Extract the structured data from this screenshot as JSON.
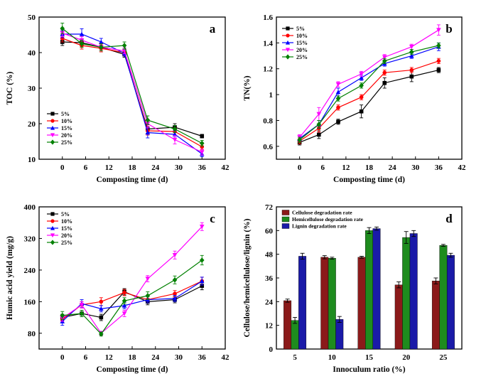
{
  "chart_data": [
    {
      "type": "line",
      "panel_label": "a",
      "xlabel": "Composting time (d)",
      "ylabel": "TOC (%)",
      "xlim": [
        -6,
        42
      ],
      "ylim": [
        10,
        50
      ],
      "xticks": [
        0,
        6,
        12,
        18,
        24,
        30,
        36,
        42
      ],
      "yticks": [
        10,
        20,
        30,
        40,
        50
      ],
      "legend_position": "lower-left",
      "x": [
        0,
        5,
        10,
        16,
        22,
        29,
        36
      ],
      "series": [
        {
          "name": "5%",
          "color": "#000000",
          "marker": "square",
          "values": [
            43.0,
            42.8,
            41.5,
            39.5,
            18.5,
            19.0,
            16.5
          ],
          "errors": [
            1.0,
            1.0,
            1.0,
            0.8,
            1.2,
            1.0,
            0.5
          ]
        },
        {
          "name": "10%",
          "color": "#ff0000",
          "marker": "circle",
          "values": [
            44.0,
            42.0,
            41.2,
            40.0,
            18.0,
            17.8,
            13.5
          ],
          "errors": [
            1.0,
            1.0,
            1.0,
            0.8,
            1.2,
            1.0,
            0.8
          ]
        },
        {
          "name": "15%",
          "color": "#0000ff",
          "marker": "triangle-up",
          "values": [
            45.2,
            45.2,
            43.0,
            39.8,
            17.5,
            17.0,
            11.5
          ],
          "errors": [
            1.0,
            1.5,
            1.0,
            0.8,
            1.5,
            1.0,
            0.8
          ]
        },
        {
          "name": "20%",
          "color": "#ff00ff",
          "marker": "triangle-down",
          "values": [
            45.5,
            43.5,
            41.5,
            40.5,
            20.0,
            15.5,
            12.0
          ],
          "errors": [
            1.0,
            1.0,
            1.0,
            0.8,
            1.2,
            1.2,
            0.8
          ]
        },
        {
          "name": "25%",
          "color": "#008000",
          "marker": "diamond",
          "values": [
            46.8,
            42.5,
            41.5,
            42.0,
            21.0,
            18.5,
            14.5
          ],
          "errors": [
            1.5,
            1.0,
            1.0,
            1.0,
            1.2,
            1.0,
            0.8
          ]
        }
      ]
    },
    {
      "type": "line",
      "panel_label": "b",
      "xlabel": "Composting time (d)",
      "ylabel": "TN(%)",
      "xlim": [
        -6,
        42
      ],
      "ylim": [
        0.5,
        1.6
      ],
      "xticks": [
        0,
        6,
        12,
        18,
        24,
        30,
        36,
        42
      ],
      "yticks": [
        0.6,
        0.8,
        1.0,
        1.2,
        1.4,
        1.6
      ],
      "legend_position": "top-left",
      "x": [
        0,
        5,
        10,
        16,
        22,
        29,
        36
      ],
      "series": [
        {
          "name": "5%",
          "color": "#000000",
          "marker": "square",
          "values": [
            0.63,
            0.69,
            0.79,
            0.87,
            1.09,
            1.14,
            1.19
          ],
          "errors": [
            0.02,
            0.03,
            0.02,
            0.05,
            0.04,
            0.04,
            0.02
          ]
        },
        {
          "name": "10%",
          "color": "#ff0000",
          "marker": "circle",
          "values": [
            0.64,
            0.74,
            0.9,
            0.98,
            1.17,
            1.19,
            1.26
          ],
          "errors": [
            0.02,
            0.03,
            0.02,
            0.02,
            0.02,
            0.02,
            0.02
          ]
        },
        {
          "name": "15%",
          "color": "#0000ff",
          "marker": "triangle-up",
          "values": [
            0.66,
            0.77,
            1.02,
            1.13,
            1.24,
            1.3,
            1.37
          ],
          "errors": [
            0.02,
            0.03,
            0.03,
            0.02,
            0.02,
            0.02,
            0.03
          ]
        },
        {
          "name": "20%",
          "color": "#ff00ff",
          "marker": "triangle-down",
          "values": [
            0.67,
            0.85,
            1.08,
            1.16,
            1.29,
            1.37,
            1.5
          ],
          "errors": [
            0.02,
            0.05,
            0.02,
            0.02,
            0.02,
            0.02,
            0.04
          ]
        },
        {
          "name": "25%",
          "color": "#008000",
          "marker": "diamond",
          "values": [
            0.65,
            0.77,
            0.97,
            1.07,
            1.26,
            1.33,
            1.38
          ],
          "errors": [
            0.02,
            0.03,
            0.02,
            0.02,
            0.02,
            0.02,
            0.02
          ]
        }
      ]
    },
    {
      "type": "line",
      "panel_label": "c",
      "xlabel": "Composting time (d)",
      "ylabel": "Humic acid yield (mg/g)",
      "xlim": [
        -6,
        42
      ],
      "ylim": [
        40,
        400
      ],
      "xticks": [
        0,
        6,
        12,
        18,
        24,
        30,
        36,
        42
      ],
      "yticks": [
        80,
        160,
        240,
        320,
        400
      ],
      "legend_position": "top-left",
      "x": [
        0,
        5,
        10,
        16,
        22,
        29,
        36
      ],
      "series": [
        {
          "name": "5%",
          "color": "#000000",
          "marker": "square",
          "values": [
            120,
            130,
            120,
            185,
            160,
            165,
            200
          ],
          "errors": [
            8,
            8,
            8,
            8,
            8,
            8,
            10
          ]
        },
        {
          "name": "10%",
          "color": "#ff0000",
          "marker": "circle",
          "values": [
            115,
            152,
            160,
            183,
            165,
            180,
            212
          ],
          "errors": [
            8,
            8,
            10,
            8,
            8,
            8,
            10
          ]
        },
        {
          "name": "15%",
          "color": "#0000ff",
          "marker": "triangle-up",
          "values": [
            110,
            155,
            142,
            150,
            165,
            168,
            212
          ],
          "errors": [
            10,
            10,
            8,
            8,
            8,
            8,
            10
          ]
        },
        {
          "name": "20%",
          "color": "#ff00ff",
          "marker": "triangle-down",
          "values": [
            118,
            152,
            80,
            130,
            218,
            278,
            350
          ],
          "errors": [
            8,
            8,
            5,
            8,
            8,
            10,
            10
          ]
        },
        {
          "name": "25%",
          "color": "#008000",
          "marker": "diamond",
          "values": [
            125,
            130,
            78,
            162,
            175,
            215,
            265
          ],
          "errors": [
            10,
            8,
            5,
            8,
            10,
            10,
            12
          ]
        }
      ]
    },
    {
      "type": "bar",
      "panel_label": "d",
      "xlabel": "Innoculum ratio (%)",
      "ylabel": "Cellulose/hemicellulose/lignin (%)",
      "ylim": [
        0,
        72
      ],
      "yticks": [
        0,
        12,
        24,
        36,
        48,
        60,
        72
      ],
      "legend_position": "top-left",
      "categories": [
        "5",
        "10",
        "15",
        "20",
        "25"
      ],
      "series": [
        {
          "name": "Cellulose degradation rate",
          "color": "#8b1a1a",
          "values": [
            24.5,
            46.5,
            46.5,
            32.5,
            34.5
          ],
          "errors": [
            0.8,
            0.8,
            0.5,
            1.5,
            1.5
          ]
        },
        {
          "name": "Hemicellulose degradation rate",
          "color": "#1e8c1e",
          "values": [
            14.5,
            46.0,
            60.0,
            56.5,
            52.5
          ],
          "errors": [
            1.5,
            0.5,
            1.5,
            3.0,
            0.5
          ]
        },
        {
          "name": "Lignin degradation rate",
          "color": "#1a1aa8",
          "values": [
            47.0,
            15.0,
            61.0,
            58.5,
            47.5
          ],
          "errors": [
            1.5,
            1.5,
            0.8,
            1.5,
            1.0
          ]
        }
      ]
    }
  ]
}
